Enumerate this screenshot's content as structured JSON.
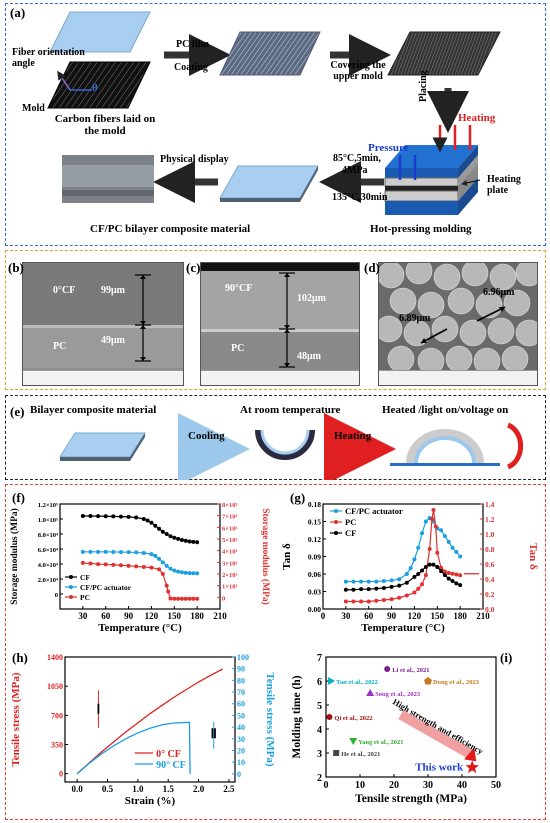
{
  "panel_a": {
    "label": "(a)",
    "fiber_orientation": "Fiber orientation angle",
    "theta": "θ",
    "mold": "Mold",
    "carbon_fibers": "Carbon fibers laid on the mold",
    "pc_film": "PC film",
    "coating": "Coating",
    "covering": "Covering the upper mold",
    "placing": "Placing",
    "heating": "Heating",
    "pressure": "Pressure",
    "heating_plate": "Heating plate",
    "cond1": "85°C,5min,",
    "cond2": "4MPa",
    "cond3": "135°C,30min",
    "physical_display": "Physical display",
    "bilayer": "CF/PC bilayer composite material",
    "hot_pressing": "Hot-pressing molding"
  },
  "panel_b": {
    "label": "(b)",
    "cf": "0°CF",
    "pc": "PC",
    "t1": "99μm",
    "t2": "49μm"
  },
  "panel_c": {
    "label": "(c)",
    "cf": "90°CF",
    "pc": "PC",
    "t1": "102μm",
    "t2": "48μm"
  },
  "panel_d": {
    "label": "(d)",
    "d1": "6.96μm",
    "d2": "6.89μm"
  },
  "panel_e": {
    "label": "(e)",
    "bilayer": "Bilayer composite material",
    "room_temp": "At room temperature",
    "heated": "Heated /light on/voltage on",
    "cooling": "Cooling",
    "heating": "Heating"
  },
  "panel_f": {
    "label": "(f)"
  },
  "panel_g": {
    "label": "(g)"
  },
  "panel_h": {
    "label": "(h)"
  },
  "panel_i": {
    "label": "(i)"
  },
  "chart_data": [
    {
      "id": "f",
      "type": "line",
      "xlabel": "Temperature (°C)",
      "ylabel": "Storage modulus (MPa)",
      "ylabel_right": "Storage modulus (MPa)",
      "xlim": [
        0,
        210
      ],
      "ylim_left": [
        -20000,
        120000
      ],
      "ylim_right": [
        -1000,
        8000
      ],
      "xticks": [
        "30",
        "60",
        "90",
        "120",
        "150",
        "180",
        "210"
      ],
      "yticks_left": [
        "0",
        "2.0×10⁴",
        "4.0×10⁴",
        "6.0×10⁴",
        "8.0×10⁴",
        "1.0×10⁵",
        "1.2×10⁵"
      ],
      "yticks_right": [
        "0",
        "1×10³",
        "2×10³",
        "3×10³",
        "4×10³",
        "5×10³",
        "6×10³",
        "7×10³",
        "8×10³"
      ],
      "legend": [
        "CF",
        "CF/PC actuator",
        "PC"
      ],
      "series": [
        {
          "name": "CF",
          "axis": "left",
          "color": "#000000",
          "x": [
            30,
            40,
            50,
            60,
            70,
            80,
            90,
            100,
            110,
            115,
            120,
            125,
            130,
            135,
            140,
            145,
            150,
            155,
            160,
            165,
            170,
            175,
            180
          ],
          "y": [
            104000,
            104000,
            103800,
            103700,
            103500,
            103200,
            102800,
            102000,
            100000,
            98000,
            95000,
            91000,
            87000,
            83000,
            80000,
            77000,
            75000,
            73500,
            72000,
            71000,
            70000,
            69500,
            69000
          ]
        },
        {
          "name": "CF/PC actuator",
          "axis": "right",
          "color": "#1aa0e0",
          "x": [
            30,
            40,
            50,
            60,
            70,
            80,
            90,
            100,
            110,
            120,
            125,
            130,
            135,
            140,
            145,
            150,
            155,
            160,
            165,
            170,
            175,
            180
          ],
          "y": [
            3900,
            3900,
            3900,
            3900,
            3890,
            3880,
            3870,
            3850,
            3800,
            3700,
            3550,
            3300,
            3000,
            2700,
            2450,
            2300,
            2200,
            2150,
            2100,
            2080,
            2060,
            2050
          ]
        },
        {
          "name": "PC",
          "axis": "right",
          "color": "#e03030",
          "x": [
            30,
            40,
            50,
            60,
            70,
            80,
            90,
            100,
            110,
            120,
            130,
            135,
            140,
            142,
            145,
            150,
            155,
            160,
            165,
            170,
            175,
            180
          ],
          "y": [
            2950,
            2900,
            2850,
            2820,
            2780,
            2750,
            2700,
            2650,
            2600,
            2550,
            2400,
            2000,
            1000,
            500,
            -100,
            -120,
            -120,
            -120,
            -120,
            -120,
            -120,
            -120
          ]
        }
      ]
    },
    {
      "id": "g",
      "type": "line",
      "xlabel": "Temperature (°C)",
      "ylabel": "Tan δ",
      "ylabel_right": "Tan δ",
      "xlim": [
        0,
        210
      ],
      "ylim_left": [
        0,
        0.18
      ],
      "ylim_right": [
        0,
        1.4
      ],
      "xticks": [
        "0",
        "30",
        "60",
        "90",
        "120",
        "150",
        "180",
        "210"
      ],
      "yticks_left": [
        "0.00",
        "0.03",
        "0.06",
        "0.09",
        "0.12",
        "0.15",
        "0.18"
      ],
      "yticks_right": [
        "0.0",
        "0.2",
        "0.4",
        "0.6",
        "0.8",
        "1.0",
        "1.2",
        "1.4"
      ],
      "legend": [
        "CF/PC actuator",
        "PC",
        "CF"
      ],
      "series": [
        {
          "name": "CF/PC actuator",
          "axis": "left",
          "color": "#1aa0e0",
          "x": [
            30,
            40,
            50,
            60,
            70,
            80,
            90,
            100,
            110,
            115,
            120,
            125,
            130,
            135,
            140,
            145,
            150,
            155,
            160,
            165,
            170,
            175,
            180
          ],
          "y": [
            0.047,
            0.047,
            0.047,
            0.047,
            0.047,
            0.048,
            0.049,
            0.051,
            0.06,
            0.07,
            0.085,
            0.105,
            0.13,
            0.15,
            0.156,
            0.15,
            0.138,
            0.135,
            0.125,
            0.115,
            0.105,
            0.098,
            0.09
          ]
        },
        {
          "name": "PC",
          "axis": "right",
          "color": "#e03030",
          "x": [
            30,
            40,
            50,
            60,
            70,
            80,
            90,
            100,
            110,
            120,
            125,
            130,
            135,
            140,
            143,
            145,
            148,
            150,
            155,
            160,
            165,
            170,
            175,
            180
          ],
          "y": [
            0.1,
            0.1,
            0.1,
            0.1,
            0.11,
            0.12,
            0.13,
            0.15,
            0.18,
            0.22,
            0.27,
            0.33,
            0.45,
            0.8,
            1.2,
            1.32,
            1.1,
            0.75,
            0.55,
            0.5,
            0.48,
            0.47,
            0.46,
            0.45
          ]
        },
        {
          "name": "CF",
          "axis": "left",
          "color": "#000000",
          "x": [
            30,
            40,
            50,
            60,
            70,
            80,
            90,
            100,
            110,
            120,
            125,
            130,
            135,
            140,
            145,
            150,
            155,
            160,
            165,
            170,
            175,
            180
          ],
          "y": [
            0.033,
            0.033,
            0.034,
            0.034,
            0.035,
            0.036,
            0.038,
            0.04,
            0.045,
            0.055,
            0.06,
            0.066,
            0.072,
            0.076,
            0.076,
            0.072,
            0.065,
            0.058,
            0.052,
            0.048,
            0.044,
            0.041
          ]
        }
      ]
    },
    {
      "id": "h",
      "type": "line",
      "xlabel": "Strain (%)",
      "ylabel": "Tensile stress (MPa)",
      "ylabel_right": "Tensile stress (MPa)",
      "xlim": [
        -0.2,
        2.6
      ],
      "ylim_left": [
        -100,
        1400
      ],
      "ylim_right": [
        -7,
        100
      ],
      "xticks": [
        "0.0",
        "0.5",
        "1.0",
        "1.5",
        "2.0",
        "2.5"
      ],
      "yticks_left": [
        "0",
        "350",
        "700",
        "1050",
        "1400"
      ],
      "yticks_right": [
        "0",
        "10",
        "20",
        "30",
        "40",
        "50",
        "60",
        "70",
        "80",
        "90",
        "100"
      ],
      "legend": [
        "0° CF",
        "90° CF"
      ],
      "annotations": [
        "Ⅰ",
        "Ⅱ"
      ],
      "series": [
        {
          "name": "0° CF",
          "axis": "left",
          "color": "#e02020",
          "x": [
            0.0,
            0.2,
            0.4,
            0.6,
            0.8,
            1.0,
            1.2,
            1.4,
            1.6,
            1.8,
            2.0,
            2.2,
            2.38,
            2.4
          ],
          "y": [
            0,
            130,
            260,
            380,
            500,
            610,
            720,
            820,
            920,
            1010,
            1100,
            1180,
            1250,
            1250
          ]
        },
        {
          "name": "90° CF",
          "axis": "right",
          "color": "#1aa0e0",
          "x": [
            0.0,
            0.2,
            0.4,
            0.6,
            0.8,
            1.0,
            1.2,
            1.4,
            1.6,
            1.8,
            1.85,
            1.86
          ],
          "y": [
            0,
            9,
            17,
            24,
            30,
            35,
            39,
            42,
            43.5,
            44,
            44,
            0
          ]
        }
      ]
    },
    {
      "id": "i",
      "type": "scatter",
      "xlabel": "Tensile strength (MPa)",
      "ylabel": "Molding time (h)",
      "xlim": [
        0,
        50
      ],
      "ylim": [
        2,
        7
      ],
      "xticks": [
        "0",
        "10",
        "20",
        "30",
        "40",
        "50"
      ],
      "yticks": [
        "2",
        "3",
        "4",
        "5",
        "6",
        "7"
      ],
      "annotation": "High strength and efficiency",
      "points": [
        {
          "label": "Li et al., 2021",
          "x": 18,
          "y": 6.5,
          "color": "#7a1e8a",
          "marker": "circle"
        },
        {
          "label": "Tan et al., 2022",
          "x": 1.5,
          "y": 6.0,
          "color": "#00b0c8",
          "marker": "triangle-right"
        },
        {
          "label": "Dong et al., 2023",
          "x": 30,
          "y": 6.0,
          "color": "#c87a20",
          "marker": "pentagon"
        },
        {
          "label": "Song et al., 2023",
          "x": 13,
          "y": 5.5,
          "color": "#a030c8",
          "marker": "triangle"
        },
        {
          "label": "Qi et al., 2022",
          "x": 1,
          "y": 4.5,
          "color": "#a01010",
          "marker": "circle"
        },
        {
          "label": "Yang et al., 2021",
          "x": 8,
          "y": 3.5,
          "color": "#30b030",
          "marker": "triangle-down"
        },
        {
          "label": "He et al., 2021",
          "x": 3,
          "y": 3.0,
          "color": "#444444",
          "marker": "square"
        },
        {
          "label": "This work",
          "x": 43,
          "y": 2.4,
          "color": "#e01818",
          "marker": "star"
        }
      ]
    }
  ]
}
